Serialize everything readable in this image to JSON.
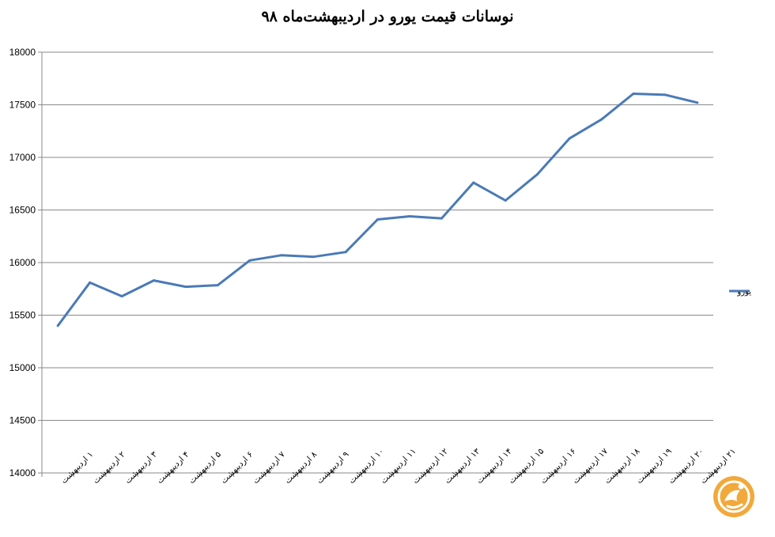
{
  "chart_data": {
    "type": "line",
    "title": "نوسانات قیمت یورو در اردیبهشت‌ماه ۹۸",
    "xlabel": "",
    "ylabel": "",
    "ylim": [
      14000,
      18000
    ],
    "yticks": [
      14000,
      14500,
      15000,
      15500,
      16000,
      16500,
      17000,
      17500,
      18000
    ],
    "grid": true,
    "legend_position": "right",
    "categories": [
      "۱ اردیبهشت",
      "۲ اردیبهشت",
      "۳ اردیبهشت",
      "۴ اردیبهشت",
      "۵ اردیبهشت",
      "۶ اردیبهشت",
      "۷ اردیبهشت",
      "۸ اردیبهشت",
      "۹ اردیبهشت",
      "۱۰ اردیبهشت",
      "۱۱ اردیبهشت",
      "۱۲ اردیبهشت",
      "۱۳ اردیبهشت",
      "۱۴ اردیبهشت",
      "۱۵ اردیبهشت",
      "۱۶ اردیبهشت",
      "۱۷ اردیبهشت",
      "۱۸ اردیبهشت",
      "۱۹ اردیبهشت",
      "۲۰ اردیبهشت",
      "۲۱ اردیبهشت"
    ],
    "series": [
      {
        "name": "یورو",
        "color": "#4a7ab7",
        "values": [
          15400,
          15810,
          15680,
          15830,
          15770,
          15785,
          16020,
          16070,
          16055,
          16100,
          16410,
          16440,
          16420,
          16760,
          16590,
          16840,
          17180,
          17360,
          17605,
          17595,
          17520
        ]
      }
    ]
  },
  "logo": {
    "icon": "logo-icon",
    "color": "#f2a93b"
  }
}
